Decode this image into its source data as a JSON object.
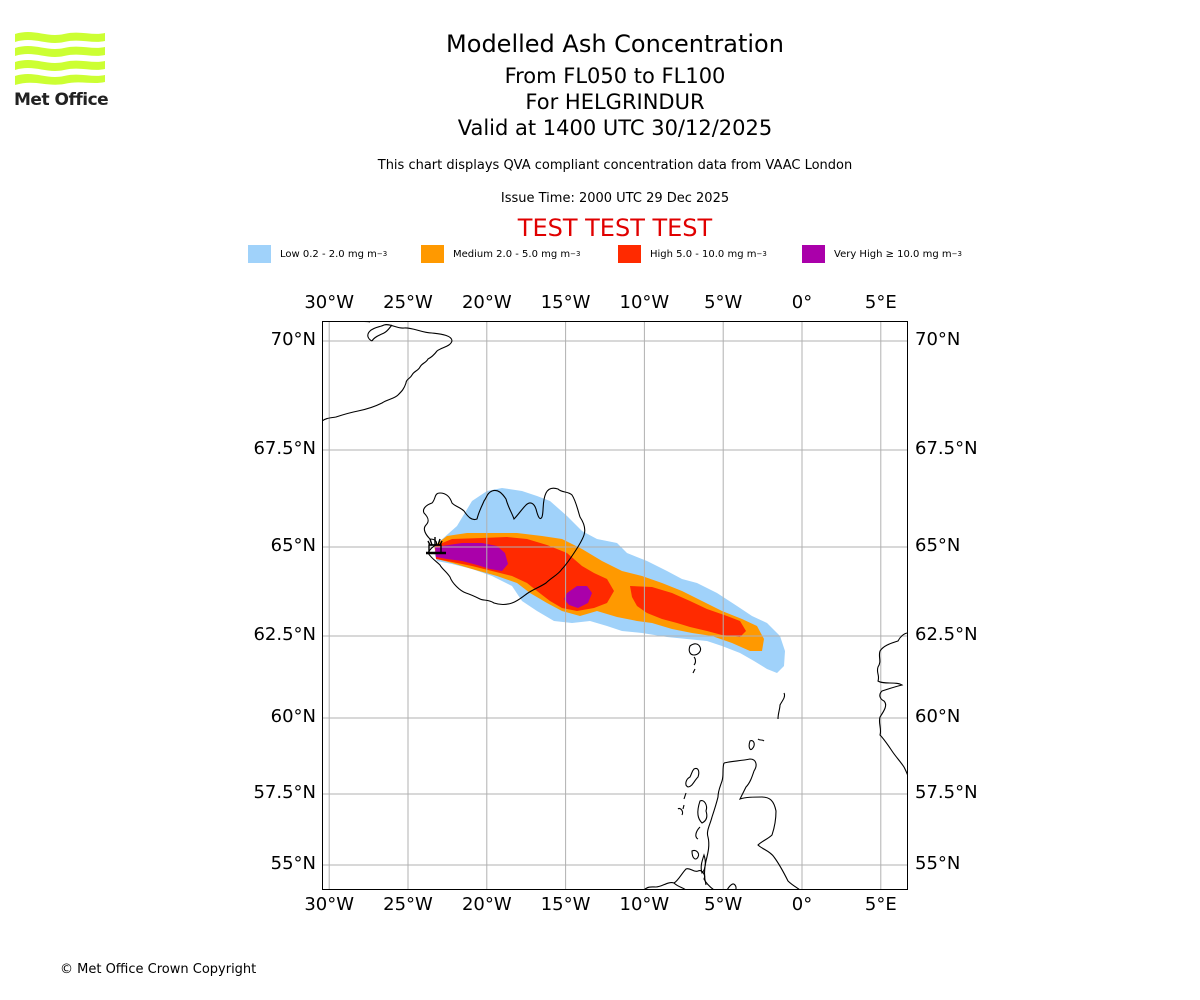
{
  "logo": {
    "name": "Met Office"
  },
  "header": {
    "title": "Modelled Ash Concentration",
    "levels": "From FL050 to FL100",
    "volcano": "For HELGRINDUR",
    "valid": "Valid at 1400 UTC 30/12/2025",
    "subtitle": "This chart displays QVA compliant concentration data from VAAC London",
    "issue_time": "Issue Time: 2000 UTC 29 Dec 2025",
    "test_banner": "TEST TEST TEST"
  },
  "legend": [
    {
      "label": "Low 0.2 - 2.0 mg m",
      "unit_sup": "−3",
      "color": "#a0d2fa"
    },
    {
      "label": "Medium 2.0 - 5.0 mg m",
      "unit_sup": "−3",
      "color": "#ff9900"
    },
    {
      "label": "High 5.0 - 10.0 mg m",
      "unit_sup": "−3",
      "color": "#ff2a00"
    },
    {
      "label": "Very High ≥ 10.0 mg m",
      "unit_sup": "−3",
      "color": "#aa00aa"
    }
  ],
  "map": {
    "lon_ticks": [
      "30°W",
      "25°W",
      "20°W",
      "15°W",
      "10°W",
      "5°W",
      "0°",
      "5°E"
    ],
    "lat_ticks": [
      "70°N",
      "67.5°N",
      "65°N",
      "62.5°N",
      "60°N",
      "57.5°N",
      "55°N"
    ],
    "lon_values": [
      -30,
      -25,
      -20,
      -15,
      -10,
      -5,
      0,
      5
    ],
    "lat_values": [
      70,
      67.5,
      65,
      62.5,
      60,
      57.5,
      55
    ],
    "extent": {
      "lon_min": -30.5,
      "lon_max": 6.7,
      "lat_min": 54.5,
      "lat_max": 70.5
    },
    "volcano_marker": {
      "name": "HELGRINDUR",
      "lon": -23.2,
      "lat": 64.9
    }
  },
  "chart_data": {
    "type": "heatmap",
    "title": "Modelled Ash Concentration",
    "categories": [
      "Low",
      "Medium",
      "High",
      "Very High"
    ],
    "ranges_mg_m3": [
      [
        0.2,
        2.0
      ],
      [
        2.0,
        5.0
      ],
      [
        5.0,
        10.0
      ],
      [
        10.0,
        null
      ]
    ],
    "colors": [
      "#a0d2fa",
      "#ff9900",
      "#ff2a00",
      "#aa00aa"
    ],
    "plume_lon_range": [
      -23.4,
      -2.0
    ],
    "plume_lat_range": [
      61.5,
      66.0
    ],
    "grid": true,
    "legend_position": "top"
  },
  "footer": {
    "copyright": "© Met Office Crown Copyright"
  }
}
